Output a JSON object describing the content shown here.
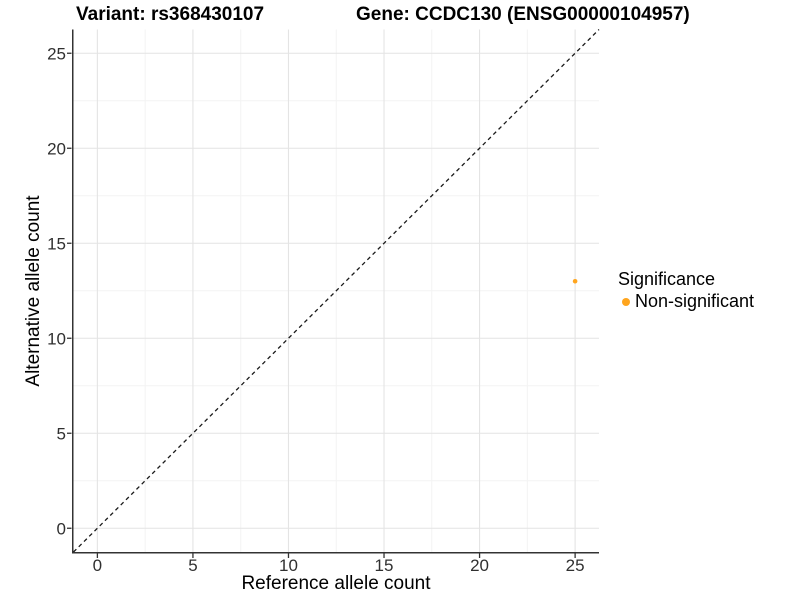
{
  "titles": {
    "left": "Variant: rs368430107",
    "right": "Gene: CCDC130 (ENSG00000104957)"
  },
  "legend": {
    "title": "Significance",
    "position": "right",
    "items": [
      {
        "label": "Non-significant",
        "color": "#FFA51E"
      }
    ]
  },
  "chart_data": {
    "type": "scatter",
    "title": "Variant: rs368430107 / Gene: CCDC130 (ENSG00000104957)",
    "xlabel": "Reference allele count",
    "ylabel": "Alternative allele count",
    "xlim": [
      -1.25,
      26.25
    ],
    "ylim": [
      -1.25,
      26.25
    ],
    "x_ticks": [
      0,
      5,
      10,
      15,
      20,
      25
    ],
    "y_ticks": [
      0,
      5,
      10,
      15,
      20,
      25
    ],
    "x_minor_ticks": [
      2.5,
      7.5,
      12.5,
      17.5,
      22.5
    ],
    "y_minor_ticks": [
      2.5,
      7.5,
      12.5,
      17.5,
      22.5
    ],
    "grid": "major+minor",
    "legend_position": "right",
    "identity_line": {
      "style": "dashed",
      "equation": "y = x",
      "from": [
        -1.25,
        -1.25
      ],
      "to": [
        26.25,
        26.25
      ]
    },
    "series": [
      {
        "name": "Non-significant",
        "color": "#FFA51E",
        "points": [
          {
            "x": 25,
            "y": 13
          }
        ]
      }
    ],
    "colors": {
      "point": "#FFA51E",
      "grid_major": "#E4E4E4",
      "grid_minor": "#F3F3F3",
      "axis_line": "#333333",
      "tick_label": "#303030",
      "identity_line": "#1a1a1a"
    }
  }
}
